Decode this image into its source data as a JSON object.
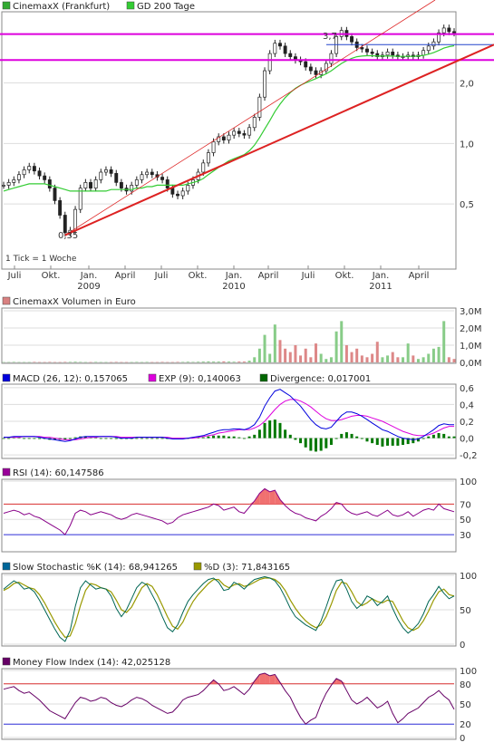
{
  "chart_data": [
    {
      "type": "line",
      "id": "price",
      "legend": [
        {
          "label": "CinemaxX (Frankfurt)",
          "color": "#33aa33"
        },
        {
          "label": "GD 200 Tage",
          "color": "#33cc33"
        }
      ],
      "x_tick_labels": [
        "Juli",
        "Okt.",
        "Jan.",
        "April",
        "Juli",
        "Okt.",
        "Jan.",
        "April",
        "Juli",
        "Okt.",
        "Jan.",
        "April"
      ],
      "year_labels": [
        "2009",
        "2010",
        "2011"
      ],
      "y_tick_labels": [
        "0,5",
        "1,0",
        "2,0"
      ],
      "y_ticks": [
        0.5,
        1.0,
        2.0
      ],
      "ylim": [
        0.25,
        4.2
      ],
      "y_scale": "log",
      "annotations": {
        "low": "0,35",
        "high": "3,7",
        "footer": "1 Tick = 1 Woche"
      },
      "close": [
        0.62,
        0.64,
        0.66,
        0.7,
        0.74,
        0.77,
        0.73,
        0.69,
        0.66,
        0.6,
        0.52,
        0.44,
        0.36,
        0.37,
        0.47,
        0.6,
        0.64,
        0.6,
        0.66,
        0.72,
        0.74,
        0.71,
        0.64,
        0.6,
        0.58,
        0.62,
        0.66,
        0.7,
        0.72,
        0.7,
        0.68,
        0.66,
        0.6,
        0.56,
        0.55,
        0.58,
        0.62,
        0.66,
        0.72,
        0.8,
        0.9,
        1.02,
        1.08,
        1.04,
        1.1,
        1.15,
        1.12,
        1.1,
        1.2,
        1.35,
        1.7,
        2.3,
        2.8,
        3.15,
        3.05,
        2.8,
        2.7,
        2.6,
        2.55,
        2.4,
        2.3,
        2.2,
        2.3,
        2.5,
        2.8,
        3.4,
        3.65,
        3.4,
        3.2,
        3.0,
        2.95,
        2.85,
        2.8,
        2.7,
        2.75,
        2.85,
        2.75,
        2.7,
        2.7,
        2.75,
        2.7,
        2.75,
        2.9,
        3.05,
        3.2,
        3.55,
        3.75,
        3.6,
        3.55
      ],
      "gd200": [
        0.58,
        0.59,
        0.6,
        0.61,
        0.62,
        0.63,
        0.63,
        0.63,
        0.63,
        0.62,
        0.61,
        0.6,
        0.59,
        0.58,
        0.58,
        0.58,
        0.58,
        0.58,
        0.58,
        0.58,
        0.58,
        0.59,
        0.59,
        0.59,
        0.59,
        0.59,
        0.6,
        0.6,
        0.61,
        0.61,
        0.62,
        0.62,
        0.62,
        0.62,
        0.62,
        0.62,
        0.63,
        0.64,
        0.65,
        0.67,
        0.7,
        0.73,
        0.76,
        0.79,
        0.82,
        0.84,
        0.86,
        0.88,
        0.92,
        0.98,
        1.07,
        1.18,
        1.3,
        1.44,
        1.57,
        1.69,
        1.79,
        1.88,
        1.95,
        2.0,
        2.05,
        2.1,
        2.16,
        2.22,
        2.3,
        2.4,
        2.5,
        2.58,
        2.65,
        2.7,
        2.72,
        2.73,
        2.73,
        2.72,
        2.72,
        2.72,
        2.72,
        2.71,
        2.71,
        2.71,
        2.71,
        2.72,
        2.74,
        2.78,
        2.83,
        2.9,
        2.98,
        3.03,
        3.06
      ],
      "h_levels": [
        3.5,
        2.6
      ],
      "trend_levels": [
        2.6
      ]
    },
    {
      "type": "bar",
      "id": "volume",
      "legend": [
        {
          "label": "CinemaxX Volumen in Euro",
          "color": "#d98080"
        }
      ],
      "y_tick_labels": [
        "0,0M",
        "1,0M",
        "2,0M",
        "3,0M"
      ],
      "y_ticks": [
        0,
        1,
        2,
        3
      ],
      "ylim": [
        0,
        3
      ],
      "values": [
        0.02,
        0.02,
        0.03,
        0.02,
        0.02,
        0.02,
        0.03,
        0.02,
        0.02,
        0.03,
        0.02,
        0.02,
        0.03,
        0.03,
        0.04,
        0.03,
        0.02,
        0.02,
        0.03,
        0.02,
        0.02,
        0.02,
        0.03,
        0.02,
        0.02,
        0.02,
        0.03,
        0.02,
        0.03,
        0.02,
        0.02,
        0.03,
        0.02,
        0.02,
        0.03,
        0.03,
        0.04,
        0.03,
        0.04,
        0.05,
        0.06,
        0.05,
        0.05,
        0.06,
        0.05,
        0.04,
        0.05,
        0.05,
        0.1,
        0.3,
        0.8,
        1.6,
        0.5,
        2.2,
        1.3,
        0.8,
        0.6,
        1.0,
        0.4,
        0.8,
        0.3,
        1.1,
        0.5,
        0.2,
        0.3,
        1.8,
        2.4,
        1.0,
        0.6,
        0.8,
        0.4,
        0.3,
        0.5,
        1.2,
        0.3,
        0.4,
        0.6,
        0.3,
        0.3,
        1.1,
        0.4,
        0.2,
        0.3,
        0.5,
        0.8,
        0.9,
        2.4,
        0.3,
        0.2
      ],
      "up_color": "#88cc88",
      "down_color": "#dd8888"
    },
    {
      "type": "line",
      "id": "macd",
      "legend": [
        {
          "label": "MACD (26, 12): 0,157065",
          "color": "#0000dd"
        },
        {
          "label": "EXP (9): 0,140063",
          "color": "#dd00dd"
        },
        {
          "label": "Divergence: 0,017001",
          "color": "#006600"
        }
      ],
      "y_tick_labels": [
        "-0,2",
        "0,0",
        "0,2",
        "0,4",
        "0,6"
      ],
      "y_ticks": [
        -0.2,
        0,
        0.2,
        0.4,
        0.6
      ],
      "ylim": [
        -0.22,
        0.62
      ],
      "macd": [
        0.01,
        0.01,
        0.02,
        0.02,
        0.02,
        0.02,
        0.02,
        0.01,
        0.0,
        -0.01,
        -0.02,
        -0.03,
        -0.04,
        -0.03,
        -0.01,
        0.01,
        0.02,
        0.02,
        0.02,
        0.02,
        0.02,
        0.02,
        0.01,
        0.0,
        0.0,
        0.0,
        0.01,
        0.01,
        0.01,
        0.01,
        0.01,
        0.01,
        0.0,
        -0.01,
        -0.01,
        -0.01,
        0.0,
        0.01,
        0.02,
        0.03,
        0.05,
        0.07,
        0.09,
        0.1,
        0.1,
        0.11,
        0.11,
        0.1,
        0.12,
        0.16,
        0.25,
        0.38,
        0.48,
        0.56,
        0.58,
        0.54,
        0.5,
        0.44,
        0.38,
        0.3,
        0.22,
        0.16,
        0.12,
        0.11,
        0.13,
        0.2,
        0.27,
        0.31,
        0.31,
        0.29,
        0.26,
        0.22,
        0.18,
        0.14,
        0.1,
        0.08,
        0.05,
        0.02,
        0.0,
        -0.01,
        -0.02,
        -0.01,
        0.02,
        0.06,
        0.1,
        0.15,
        0.17,
        0.16,
        0.16
      ],
      "signal": [
        0.01,
        0.01,
        0.01,
        0.01,
        0.02,
        0.02,
        0.02,
        0.02,
        0.01,
        0.01,
        0.0,
        -0.01,
        -0.02,
        -0.02,
        -0.02,
        -0.01,
        0.0,
        0.01,
        0.01,
        0.02,
        0.02,
        0.02,
        0.02,
        0.01,
        0.01,
        0.01,
        0.01,
        0.01,
        0.01,
        0.01,
        0.01,
        0.01,
        0.01,
        0.0,
        0.0,
        0.0,
        0.0,
        0.0,
        0.01,
        0.02,
        0.03,
        0.04,
        0.06,
        0.07,
        0.08,
        0.09,
        0.1,
        0.1,
        0.1,
        0.12,
        0.15,
        0.2,
        0.27,
        0.34,
        0.4,
        0.44,
        0.46,
        0.46,
        0.44,
        0.41,
        0.37,
        0.32,
        0.27,
        0.23,
        0.21,
        0.21,
        0.22,
        0.24,
        0.26,
        0.27,
        0.27,
        0.26,
        0.24,
        0.22,
        0.2,
        0.17,
        0.14,
        0.11,
        0.08,
        0.06,
        0.04,
        0.03,
        0.03,
        0.04,
        0.06,
        0.09,
        0.12,
        0.14,
        0.14
      ],
      "divergence": [
        0.0,
        0.0,
        0.01,
        0.01,
        0.0,
        0.0,
        0.0,
        -0.01,
        -0.01,
        -0.02,
        -0.02,
        -0.02,
        -0.02,
        -0.01,
        0.01,
        0.02,
        0.02,
        0.01,
        0.01,
        0.0,
        0.0,
        0.0,
        -0.01,
        -0.01,
        -0.01,
        -0.01,
        0.0,
        0.0,
        0.0,
        0.0,
        0.0,
        0.0,
        -0.01,
        -0.01,
        -0.01,
        -0.01,
        0.0,
        0.01,
        0.01,
        0.01,
        0.02,
        0.03,
        0.03,
        0.03,
        0.02,
        0.02,
        0.01,
        0.0,
        0.02,
        0.04,
        0.1,
        0.18,
        0.21,
        0.22,
        0.18,
        0.1,
        0.04,
        -0.02,
        -0.06,
        -0.11,
        -0.15,
        -0.16,
        -0.15,
        -0.12,
        -0.08,
        -0.01,
        0.05,
        0.07,
        0.05,
        0.02,
        -0.01,
        -0.04,
        -0.06,
        -0.08,
        -0.1,
        -0.09,
        -0.09,
        -0.09,
        -0.08,
        -0.07,
        -0.06,
        -0.04,
        -0.01,
        0.02,
        0.04,
        0.06,
        0.05,
        0.02,
        0.02
      ]
    },
    {
      "type": "line",
      "id": "rsi",
      "legend": [
        {
          "label": "RSI (14): 60,147586",
          "color": "#990099"
        }
      ],
      "y_tick_labels": [
        "30",
        "50",
        "70",
        "100"
      ],
      "y_ticks": [
        30,
        50,
        70,
        100
      ],
      "ylim": [
        10,
        100
      ],
      "upper": 70,
      "lower": 30,
      "values": [
        58,
        60,
        62,
        60,
        56,
        58,
        54,
        52,
        48,
        44,
        40,
        36,
        30,
        42,
        58,
        62,
        60,
        56,
        58,
        60,
        58,
        56,
        52,
        50,
        52,
        56,
        58,
        56,
        54,
        52,
        50,
        48,
        44,
        46,
        52,
        56,
        58,
        60,
        62,
        64,
        66,
        70,
        68,
        62,
        64,
        66,
        60,
        58,
        66,
        74,
        84,
        90,
        86,
        88,
        76,
        68,
        62,
        58,
        56,
        52,
        50,
        48,
        54,
        58,
        64,
        72,
        70,
        62,
        58,
        56,
        58,
        60,
        56,
        54,
        58,
        62,
        56,
        54,
        56,
        60,
        54,
        58,
        62,
        64,
        62,
        70,
        64,
        62,
        60
      ],
      "fill_color": "#f07070"
    },
    {
      "type": "line",
      "id": "stochastic",
      "legend": [
        {
          "label": "Slow Stochastic %K (14): 68,941265",
          "color": "#006699"
        },
        {
          "label": "%D (3): 71,843165",
          "color": "#999900"
        }
      ],
      "y_tick_labels": [
        "0",
        "50",
        "100"
      ],
      "y_ticks": [
        0,
        50,
        100
      ],
      "ylim": [
        0,
        100
      ],
      "k": [
        80,
        86,
        92,
        88,
        80,
        82,
        76,
        64,
        50,
        36,
        22,
        10,
        4,
        20,
        55,
        82,
        92,
        86,
        80,
        82,
        80,
        70,
        52,
        40,
        50,
        66,
        82,
        90,
        86,
        72,
        58,
        40,
        24,
        18,
        28,
        46,
        62,
        72,
        80,
        88,
        94,
        96,
        90,
        78,
        80,
        90,
        86,
        80,
        88,
        94,
        96,
        98,
        96,
        92,
        82,
        68,
        52,
        40,
        34,
        28,
        24,
        20,
        34,
        54,
        76,
        92,
        94,
        80,
        62,
        52,
        58,
        70,
        66,
        56,
        62,
        70,
        52,
        36,
        24,
        16,
        22,
        30,
        44,
        62,
        72,
        84,
        74,
        66,
        70
      ],
      "d": [
        78,
        82,
        88,
        90,
        86,
        82,
        80,
        72,
        60,
        46,
        32,
        20,
        10,
        12,
        30,
        56,
        78,
        88,
        86,
        82,
        80,
        76,
        64,
        50,
        46,
        54,
        68,
        82,
        88,
        84,
        72,
        56,
        40,
        26,
        22,
        32,
        48,
        62,
        72,
        80,
        88,
        94,
        94,
        86,
        82,
        86,
        88,
        84,
        86,
        90,
        94,
        96,
        96,
        94,
        88,
        78,
        64,
        52,
        42,
        34,
        28,
        24,
        28,
        40,
        58,
        78,
        90,
        88,
        76,
        62,
        56,
        60,
        66,
        62,
        60,
        64,
        62,
        48,
        34,
        24,
        20,
        24,
        34,
        48,
        64,
        76,
        80,
        72,
        70
      ]
    },
    {
      "type": "line",
      "id": "mfi",
      "legend": [
        {
          "label": "Money Flow Index (14): 42,025128",
          "color": "#660066"
        }
      ],
      "y_tick_labels": [
        "0",
        "20",
        "50",
        "80",
        "100"
      ],
      "y_ticks": [
        0,
        20,
        50,
        80,
        100
      ],
      "ylim": [
        0,
        100
      ],
      "upper": 80,
      "lower": 20,
      "values": [
        72,
        74,
        76,
        70,
        66,
        68,
        62,
        56,
        48,
        40,
        36,
        32,
        28,
        40,
        52,
        60,
        58,
        54,
        56,
        60,
        58,
        52,
        48,
        46,
        50,
        56,
        60,
        58,
        54,
        48,
        44,
        40,
        36,
        38,
        46,
        56,
        60,
        62,
        64,
        70,
        78,
        86,
        80,
        70,
        72,
        76,
        70,
        64,
        72,
        84,
        94,
        96,
        92,
        94,
        82,
        70,
        60,
        44,
        30,
        20,
        26,
        30,
        50,
        66,
        78,
        88,
        84,
        70,
        56,
        50,
        54,
        60,
        52,
        44,
        48,
        54,
        36,
        22,
        28,
        36,
        40,
        44,
        52,
        60,
        64,
        70,
        62,
        56,
        42
      ],
      "fill_color": "#f07070"
    }
  ]
}
